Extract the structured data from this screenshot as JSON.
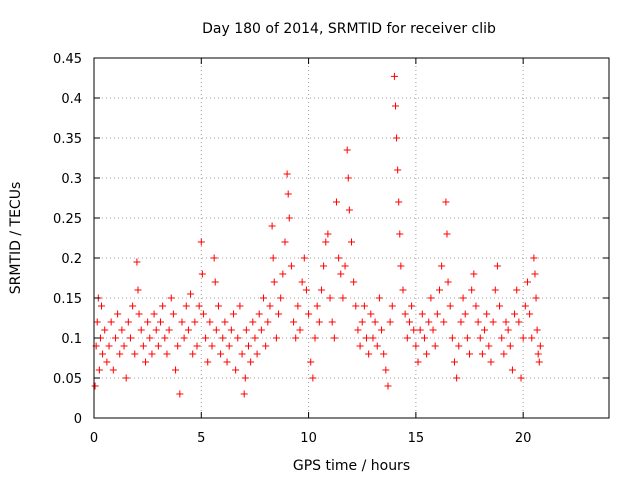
{
  "chart_data": {
    "type": "scatter",
    "title": "Day 180 of 2014, SRMTID for receiver clib",
    "xlabel": "GPS time / hours",
    "ylabel": "SRMTID / TECUs",
    "xlim": [
      0,
      24
    ],
    "ylim": [
      0,
      0.45
    ],
    "xticks": [
      0,
      5,
      10,
      15,
      20
    ],
    "yticks": [
      0,
      0.05,
      0.1,
      0.15,
      0.2,
      0.25,
      0.3,
      0.35,
      0.4,
      0.45
    ],
    "xtick_labels": [
      "0",
      "5",
      "10",
      "15",
      "20"
    ],
    "ytick_labels": [
      "0",
      "0.05",
      "0.1",
      "0.15",
      "0.2",
      "0.25",
      "0.3",
      "0.35",
      "0.4",
      "0.45"
    ],
    "grid": true,
    "marker": "plus",
    "color": "#ff0000",
    "series": [
      {
        "name": "SRMTID",
        "points": [
          [
            0.05,
            0.04
          ],
          [
            0.1,
            0.09
          ],
          [
            0.15,
            0.12
          ],
          [
            0.2,
            0.15
          ],
          [
            0.25,
            0.06
          ],
          [
            0.3,
            0.1
          ],
          [
            0.35,
            0.14
          ],
          [
            0.4,
            0.08
          ],
          [
            0.5,
            0.11
          ],
          [
            0.6,
            0.07
          ],
          [
            0.7,
            0.09
          ],
          [
            0.8,
            0.12
          ],
          [
            0.9,
            0.06
          ],
          [
            1.0,
            0.1
          ],
          [
            1.1,
            0.13
          ],
          [
            1.2,
            0.08
          ],
          [
            1.3,
            0.11
          ],
          [
            1.4,
            0.09
          ],
          [
            1.5,
            0.05
          ],
          [
            1.6,
            0.12
          ],
          [
            1.7,
            0.1
          ],
          [
            1.8,
            0.14
          ],
          [
            1.9,
            0.08
          ],
          [
            2.0,
            0.195
          ],
          [
            2.05,
            0.16
          ],
          [
            2.1,
            0.13
          ],
          [
            2.2,
            0.11
          ],
          [
            2.3,
            0.09
          ],
          [
            2.4,
            0.07
          ],
          [
            2.5,
            0.12
          ],
          [
            2.6,
            0.1
          ],
          [
            2.7,
            0.08
          ],
          [
            2.8,
            0.13
          ],
          [
            2.9,
            0.11
          ],
          [
            3.0,
            0.09
          ],
          [
            3.1,
            0.12
          ],
          [
            3.2,
            0.14
          ],
          [
            3.3,
            0.1
          ],
          [
            3.4,
            0.08
          ],
          [
            3.5,
            0.11
          ],
          [
            3.6,
            0.15
          ],
          [
            3.7,
            0.13
          ],
          [
            3.8,
            0.06
          ],
          [
            3.9,
            0.09
          ],
          [
            4.0,
            0.03
          ],
          [
            4.1,
            0.12
          ],
          [
            4.2,
            0.1
          ],
          [
            4.3,
            0.14
          ],
          [
            4.4,
            0.11
          ],
          [
            4.5,
            0.155
          ],
          [
            4.6,
            0.08
          ],
          [
            4.7,
            0.12
          ],
          [
            4.8,
            0.09
          ],
          [
            4.9,
            0.14
          ],
          [
            5.0,
            0.22
          ],
          [
            5.05,
            0.18
          ],
          [
            5.1,
            0.13
          ],
          [
            5.2,
            0.1
          ],
          [
            5.3,
            0.07
          ],
          [
            5.4,
            0.12
          ],
          [
            5.5,
            0.09
          ],
          [
            5.6,
            0.2
          ],
          [
            5.65,
            0.17
          ],
          [
            5.7,
            0.11
          ],
          [
            5.8,
            0.14
          ],
          [
            5.9,
            0.08
          ],
          [
            6.0,
            0.1
          ],
          [
            6.1,
            0.12
          ],
          [
            6.2,
            0.07
          ],
          [
            6.3,
            0.09
          ],
          [
            6.4,
            0.11
          ],
          [
            6.5,
            0.13
          ],
          [
            6.6,
            0.06
          ],
          [
            6.7,
            0.1
          ],
          [
            6.8,
            0.14
          ],
          [
            6.9,
            0.08
          ],
          [
            7.0,
            0.03
          ],
          [
            7.05,
            0.05
          ],
          [
            7.1,
            0.11
          ],
          [
            7.2,
            0.09
          ],
          [
            7.3,
            0.07
          ],
          [
            7.4,
            0.12
          ],
          [
            7.5,
            0.1
          ],
          [
            7.6,
            0.08
          ],
          [
            7.7,
            0.13
          ],
          [
            7.8,
            0.11
          ],
          [
            7.9,
            0.15
          ],
          [
            8.0,
            0.09
          ],
          [
            8.1,
            0.12
          ],
          [
            8.2,
            0.14
          ],
          [
            8.3,
            0.24
          ],
          [
            8.35,
            0.2
          ],
          [
            8.4,
            0.17
          ],
          [
            8.5,
            0.1
          ],
          [
            8.6,
            0.13
          ],
          [
            8.7,
            0.15
          ],
          [
            8.8,
            0.18
          ],
          [
            8.9,
            0.22
          ],
          [
            9.0,
            0.305
          ],
          [
            9.05,
            0.28
          ],
          [
            9.1,
            0.25
          ],
          [
            9.2,
            0.19
          ],
          [
            9.3,
            0.12
          ],
          [
            9.4,
            0.1
          ],
          [
            9.5,
            0.14
          ],
          [
            9.6,
            0.11
          ],
          [
            9.7,
            0.17
          ],
          [
            9.8,
            0.2
          ],
          [
            9.9,
            0.16
          ],
          [
            10.0,
            0.13
          ],
          [
            10.1,
            0.07
          ],
          [
            10.2,
            0.05
          ],
          [
            10.3,
            0.1
          ],
          [
            10.4,
            0.14
          ],
          [
            10.5,
            0.12
          ],
          [
            10.6,
            0.16
          ],
          [
            10.7,
            0.19
          ],
          [
            10.8,
            0.22
          ],
          [
            10.9,
            0.23
          ],
          [
            11.0,
            0.15
          ],
          [
            11.1,
            0.12
          ],
          [
            11.2,
            0.1
          ],
          [
            11.3,
            0.27
          ],
          [
            11.4,
            0.2
          ],
          [
            11.5,
            0.18
          ],
          [
            11.6,
            0.15
          ],
          [
            11.7,
            0.19
          ],
          [
            11.8,
            0.335
          ],
          [
            11.85,
            0.3
          ],
          [
            11.9,
            0.26
          ],
          [
            12.0,
            0.22
          ],
          [
            12.1,
            0.17
          ],
          [
            12.2,
            0.14
          ],
          [
            12.3,
            0.11
          ],
          [
            12.4,
            0.09
          ],
          [
            12.5,
            0.12
          ],
          [
            12.6,
            0.14
          ],
          [
            12.7,
            0.1
          ],
          [
            12.8,
            0.08
          ],
          [
            12.9,
            0.13
          ],
          [
            13.0,
            0.1
          ],
          [
            13.1,
            0.12
          ],
          [
            13.2,
            0.09
          ],
          [
            13.3,
            0.15
          ],
          [
            13.4,
            0.11
          ],
          [
            13.5,
            0.08
          ],
          [
            13.6,
            0.06
          ],
          [
            13.7,
            0.04
          ],
          [
            13.8,
            0.12
          ],
          [
            13.9,
            0.14
          ],
          [
            14.0,
            0.427
          ],
          [
            14.05,
            0.39
          ],
          [
            14.1,
            0.35
          ],
          [
            14.15,
            0.31
          ],
          [
            14.2,
            0.27
          ],
          [
            14.25,
            0.23
          ],
          [
            14.3,
            0.19
          ],
          [
            14.4,
            0.16
          ],
          [
            14.5,
            0.13
          ],
          [
            14.6,
            0.1
          ],
          [
            14.7,
            0.12
          ],
          [
            14.8,
            0.14
          ],
          [
            14.9,
            0.11
          ],
          [
            15.0,
            0.09
          ],
          [
            15.1,
            0.07
          ],
          [
            15.2,
            0.11
          ],
          [
            15.3,
            0.13
          ],
          [
            15.4,
            0.1
          ],
          [
            15.5,
            0.08
          ],
          [
            15.6,
            0.12
          ],
          [
            15.7,
            0.15
          ],
          [
            15.8,
            0.11
          ],
          [
            15.9,
            0.09
          ],
          [
            16.0,
            0.13
          ],
          [
            16.1,
            0.16
          ],
          [
            16.2,
            0.19
          ],
          [
            16.3,
            0.12
          ],
          [
            16.4,
            0.27
          ],
          [
            16.45,
            0.23
          ],
          [
            16.5,
            0.17
          ],
          [
            16.6,
            0.14
          ],
          [
            16.7,
            0.1
          ],
          [
            16.8,
            0.07
          ],
          [
            16.9,
            0.05
          ],
          [
            17.0,
            0.09
          ],
          [
            17.1,
            0.12
          ],
          [
            17.2,
            0.15
          ],
          [
            17.3,
            0.13
          ],
          [
            17.4,
            0.1
          ],
          [
            17.5,
            0.08
          ],
          [
            17.6,
            0.16
          ],
          [
            17.7,
            0.18
          ],
          [
            17.8,
            0.14
          ],
          [
            17.9,
            0.12
          ],
          [
            18.0,
            0.1
          ],
          [
            18.1,
            0.08
          ],
          [
            18.2,
            0.11
          ],
          [
            18.3,
            0.13
          ],
          [
            18.4,
            0.09
          ],
          [
            18.5,
            0.07
          ],
          [
            18.6,
            0.12
          ],
          [
            18.7,
            0.16
          ],
          [
            18.8,
            0.19
          ],
          [
            18.9,
            0.14
          ],
          [
            19.0,
            0.1
          ],
          [
            19.1,
            0.08
          ],
          [
            19.2,
            0.12
          ],
          [
            19.3,
            0.11
          ],
          [
            19.4,
            0.09
          ],
          [
            19.5,
            0.06
          ],
          [
            19.6,
            0.13
          ],
          [
            19.7,
            0.16
          ],
          [
            19.8,
            0.12
          ],
          [
            19.9,
            0.05
          ],
          [
            20.0,
            0.1
          ],
          [
            20.1,
            0.14
          ],
          [
            20.2,
            0.17
          ],
          [
            20.3,
            0.13
          ],
          [
            20.4,
            0.1
          ],
          [
            20.5,
            0.2
          ],
          [
            20.55,
            0.18
          ],
          [
            20.6,
            0.15
          ],
          [
            20.65,
            0.11
          ],
          [
            20.7,
            0.08
          ],
          [
            20.75,
            0.07
          ],
          [
            20.8,
            0.09
          ]
        ]
      }
    ]
  }
}
